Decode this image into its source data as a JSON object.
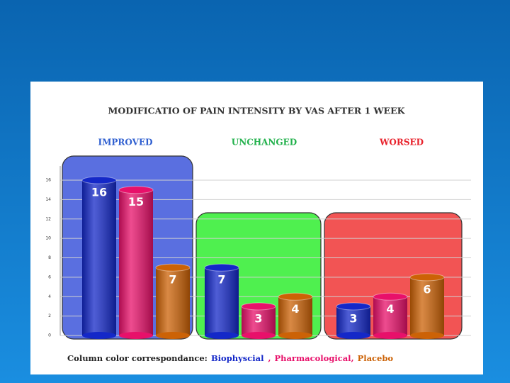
{
  "chart_data": {
    "type": "bar",
    "title": "MODIFICATIO OF PAIN INTENSITY  BY VAS  AFTER 1 WEEK",
    "categories": [
      "IMPROVED",
      "UNCHANGED",
      "WORSED"
    ],
    "category_colors": [
      "#2f5fd0",
      "#22b14c",
      "#e8202a"
    ],
    "group_backgrounds": [
      "#5a6fe0",
      "#4ff04f",
      "#f25454"
    ],
    "series": [
      {
        "name": "Biophyscial",
        "color": "#1428c8",
        "values": [
          16,
          7,
          3
        ]
      },
      {
        "name": "Pharmacological",
        "color": "#e8106a",
        "values": [
          15,
          3,
          4
        ]
      },
      {
        "name": "Placebo",
        "color": "#cc6206",
        "values": [
          7,
          4,
          6
        ]
      }
    ],
    "legend_title": "Column color correspondance:",
    "legend_separator": ",",
    "ylim": [
      0,
      16
    ],
    "yticks": [
      0,
      2,
      4,
      6,
      8,
      10,
      12,
      14,
      16
    ],
    "grid": true
  }
}
